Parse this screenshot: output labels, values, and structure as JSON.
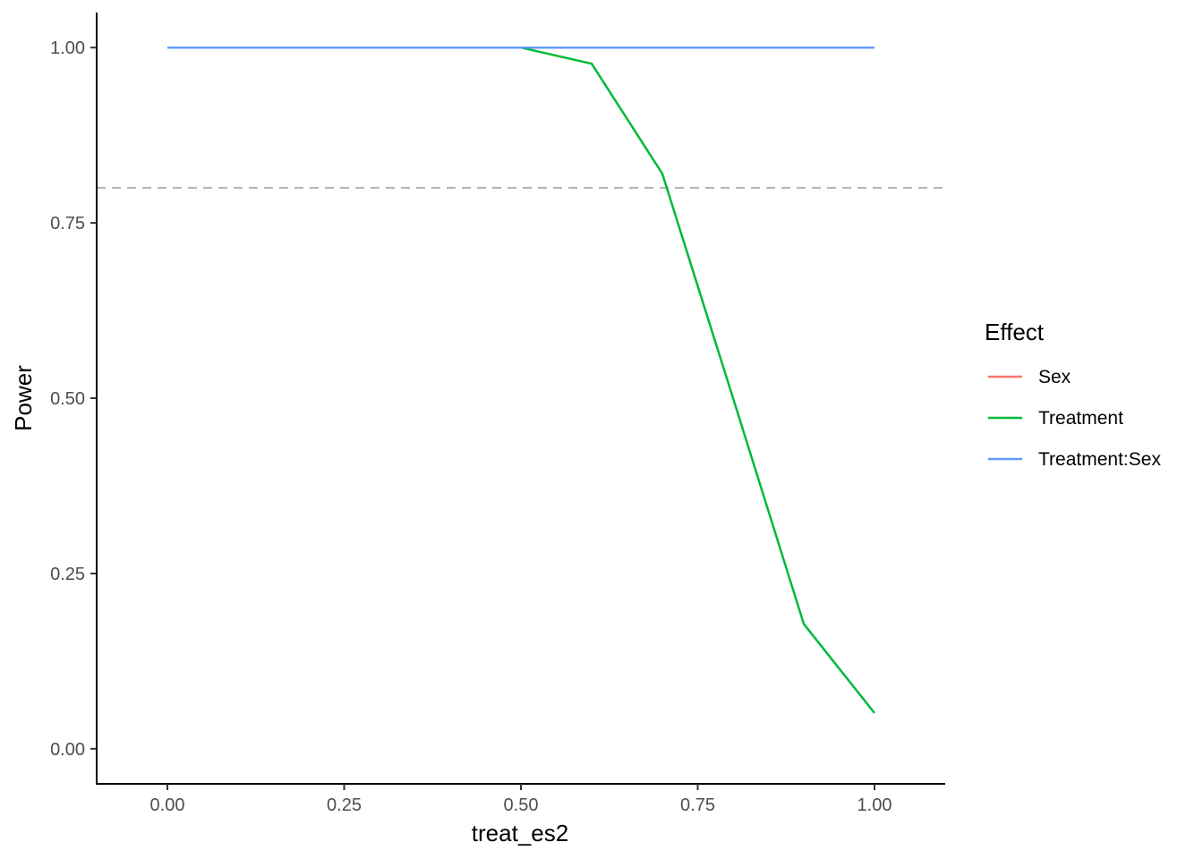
{
  "chart_data": {
    "type": "line",
    "xlabel": "treat_es2",
    "ylabel": "Power",
    "xlim": [
      -0.1,
      1.1
    ],
    "ylim": [
      -0.05,
      1.05
    ],
    "x_ticks": [
      "0.00",
      "0.25",
      "0.50",
      "0.75",
      "1.00"
    ],
    "y_ticks": [
      "0.00",
      "0.25",
      "0.50",
      "0.75",
      "1.00"
    ],
    "grid": false,
    "reference_line": {
      "y": 0.8,
      "style": "dashed",
      "color": "#b3b3b3"
    },
    "x": [
      0.0,
      0.1,
      0.2,
      0.3,
      0.4,
      0.5,
      0.6,
      0.7,
      0.8,
      0.9,
      1.0
    ],
    "series": [
      {
        "name": "Sex",
        "color": "#F8766D",
        "values": [
          1.0,
          1.0,
          1.0,
          1.0,
          1.0,
          1.0,
          1.0,
          1.0,
          1.0,
          1.0,
          1.0
        ]
      },
      {
        "name": "Treatment",
        "color": "#00BA38",
        "values": [
          1.0,
          1.0,
          1.0,
          1.0,
          1.0,
          1.0,
          0.977,
          0.82,
          0.5,
          0.178,
          0.051
        ]
      },
      {
        "name": "Treatment:Sex",
        "color": "#619CFF",
        "values": [
          1.0,
          1.0,
          1.0,
          1.0,
          1.0,
          1.0,
          1.0,
          1.0,
          1.0,
          1.0,
          1.0
        ]
      }
    ],
    "legend": {
      "title": "Effect",
      "position": "right"
    }
  }
}
